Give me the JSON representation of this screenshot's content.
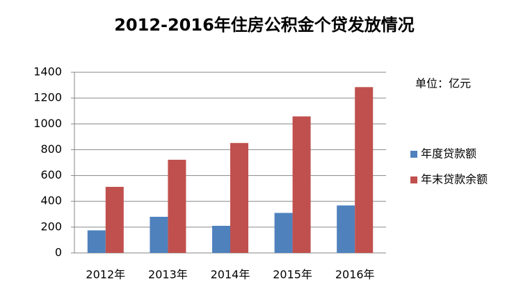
{
  "chart_data": {
    "type": "bar",
    "title": "2012-2016年住房公积金个贷发放情况",
    "annotation": "单位：亿元",
    "categories": [
      "2012年",
      "2013年",
      "2014年",
      "2015年",
      "2016年"
    ],
    "series": [
      {
        "name": "年度贷款额",
        "color": "#4f81bd",
        "values": [
          175,
          280,
          210,
          310,
          368
        ]
      },
      {
        "name": "年末贷款余额",
        "color": "#c0504d",
        "values": [
          512,
          722,
          852,
          1058,
          1285
        ]
      }
    ],
    "ylim": [
      0,
      1400
    ],
    "yticks": [
      0,
      200,
      400,
      600,
      800,
      1000,
      1200,
      1400
    ],
    "grid": true,
    "legend": "right"
  }
}
